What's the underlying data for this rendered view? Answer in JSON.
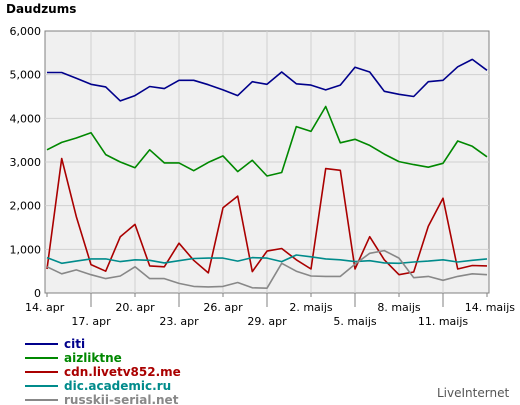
{
  "chart_data": {
    "type": "line",
    "title": "Daudzums",
    "xlabel": "",
    "ylabel": "",
    "ylim": [
      0,
      6000
    ],
    "y_ticks": [
      "0",
      "1,000",
      "2,000",
      "3,000",
      "4,000",
      "5,000",
      "6,000"
    ],
    "x_tick_labels": [
      "14. apr",
      "17. apr",
      "20. apr",
      "23. apr",
      "26. apr",
      "29. apr",
      "2. maijs",
      "5. maijs",
      "8. maijs",
      "11. maijs",
      "14. maijs"
    ],
    "grid": true,
    "legend_position": "bottom-left",
    "series": [
      {
        "name": "citi",
        "color": "#00008b",
        "values": [
          5050,
          5050,
          4920,
          4780,
          4720,
          4400,
          4520,
          4730,
          4680,
          4870,
          4870,
          4770,
          4650,
          4520,
          4840,
          4780,
          5060,
          4790,
          4760,
          4650,
          4760,
          5170,
          5060,
          4620,
          4550,
          4500,
          4840,
          4870,
          5180,
          5350,
          5100
        ]
      },
      {
        "name": "aizliktne",
        "color": "#008800",
        "values": [
          3280,
          3450,
          3550,
          3670,
          3170,
          3000,
          2870,
          3280,
          2980,
          2980,
          2800,
          2990,
          3140,
          2780,
          3040,
          2680,
          2760,
          3810,
          3700,
          4270,
          3440,
          3520,
          3380,
          3180,
          3010,
          2940,
          2880,
          2970,
          3480,
          3360,
          3120
        ]
      },
      {
        "name": "cdn.livetv852.me",
        "color": "#aa0000",
        "values": [
          550,
          3080,
          1750,
          650,
          500,
          1290,
          1570,
          620,
          600,
          1140,
          750,
          460,
          1950,
          2220,
          490,
          960,
          1020,
          760,
          550,
          2850,
          2810,
          550,
          1290,
          760,
          420,
          480,
          1530,
          2170,
          550,
          630,
          620
        ]
      },
      {
        "name": "dic.academic.ru",
        "color": "#008b8b",
        "values": [
          810,
          680,
          730,
          780,
          780,
          720,
          760,
          750,
          690,
          740,
          790,
          800,
          800,
          730,
          810,
          800,
          720,
          870,
          830,
          780,
          760,
          720,
          740,
          690,
          680,
          710,
          730,
          760,
          710,
          750,
          780
        ]
      },
      {
        "name": "russkii-serial.net",
        "color": "#888888",
        "values": [
          600,
          440,
          530,
          420,
          330,
          390,
          600,
          330,
          330,
          220,
          150,
          140,
          150,
          240,
          120,
          110,
          680,
          500,
          390,
          380,
          380,
          660,
          910,
          970,
          800,
          350,
          380,
          290,
          380,
          440,
          420
        ]
      }
    ]
  },
  "branding": "LiveInternet"
}
